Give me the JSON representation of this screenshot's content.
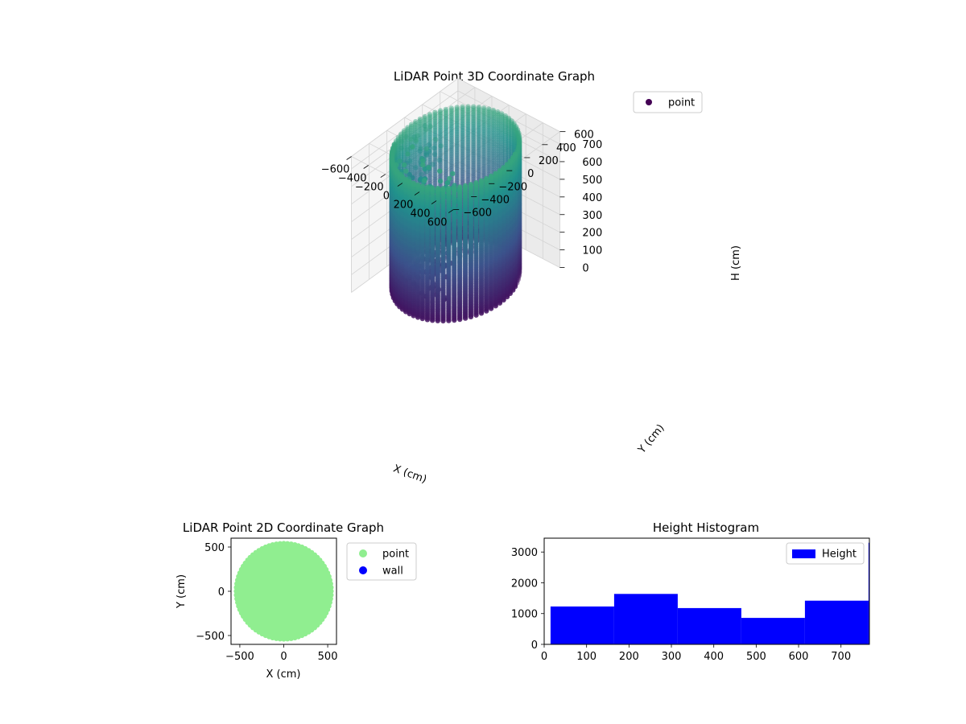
{
  "chart_data": [
    {
      "id": "lidar-3d",
      "type": "scatter",
      "title": "LiDAR Point 3D Coordinate Graph",
      "xlabel": "X (cm)",
      "ylabel": "Y (cm)",
      "zlabel": "H (cm)",
      "x_ticks": [
        -600,
        -400,
        -200,
        0,
        200,
        400,
        600
      ],
      "y_ticks": [
        -600,
        -400,
        -200,
        0,
        200,
        400,
        600
      ],
      "z_ticks": [
        0,
        100,
        200,
        300,
        400,
        500,
        600,
        700
      ],
      "xlim": [
        -600,
        600
      ],
      "ylim": [
        -600,
        600
      ],
      "zlim": [
        770,
        0
      ],
      "z_inverted": true,
      "grid": true,
      "legend": [
        "point"
      ],
      "legend_placement": "upper-right",
      "colormap": "viridis",
      "colormap_range": [
        "#440154",
        "#3b528b",
        "#21918c",
        "#5ec962"
      ],
      "series": [
        {
          "name": "point",
          "shape": "cylindrical shell scan",
          "radius": 520,
          "height_range": [
            0,
            750
          ]
        }
      ]
    },
    {
      "id": "lidar-2d",
      "type": "scatter",
      "title": "LiDAR Point 2D Coordinate Graph",
      "xlabel": "X (cm)",
      "ylabel": "Y (cm)",
      "x_ticks": [
        -500,
        0,
        500
      ],
      "y_ticks": [
        -500,
        0,
        500
      ],
      "xlim": [
        -600,
        600
      ],
      "ylim": [
        -600,
        600
      ],
      "legend": [
        "point",
        "wall"
      ],
      "legend_placement": "outside-right",
      "series": [
        {
          "name": "point",
          "color": "#90ee90",
          "shape": "filled disk",
          "radius": 540
        },
        {
          "name": "wall",
          "color": "#0000ff"
        }
      ]
    },
    {
      "id": "height-hist",
      "type": "bar",
      "title": "Height Histogram",
      "x_ticks": [
        0,
        100,
        200,
        300,
        400,
        500,
        600,
        700
      ],
      "y_ticks": [
        0,
        1000,
        2000,
        3000
      ],
      "xlim": [
        0,
        767
      ],
      "ylim": [
        0,
        3450
      ],
      "legend": [
        "Height"
      ],
      "legend_placement": "upper-right",
      "series": [
        {
          "name": "Height",
          "color": "#0000ff",
          "bins": [
            {
              "x0": 15,
              "x1": 165,
              "count": 1230
            },
            {
              "x0": 165,
              "x1": 315,
              "count": 1640
            },
            {
              "x0": 315,
              "x1": 465,
              "count": 1180
            },
            {
              "x0": 465,
              "x1": 615,
              "count": 860
            },
            {
              "x0": 615,
              "x1": 765,
              "count": 1420
            },
            {
              "x0": 765,
              "x1": 767,
              "count": 3300
            }
          ]
        }
      ]
    }
  ]
}
